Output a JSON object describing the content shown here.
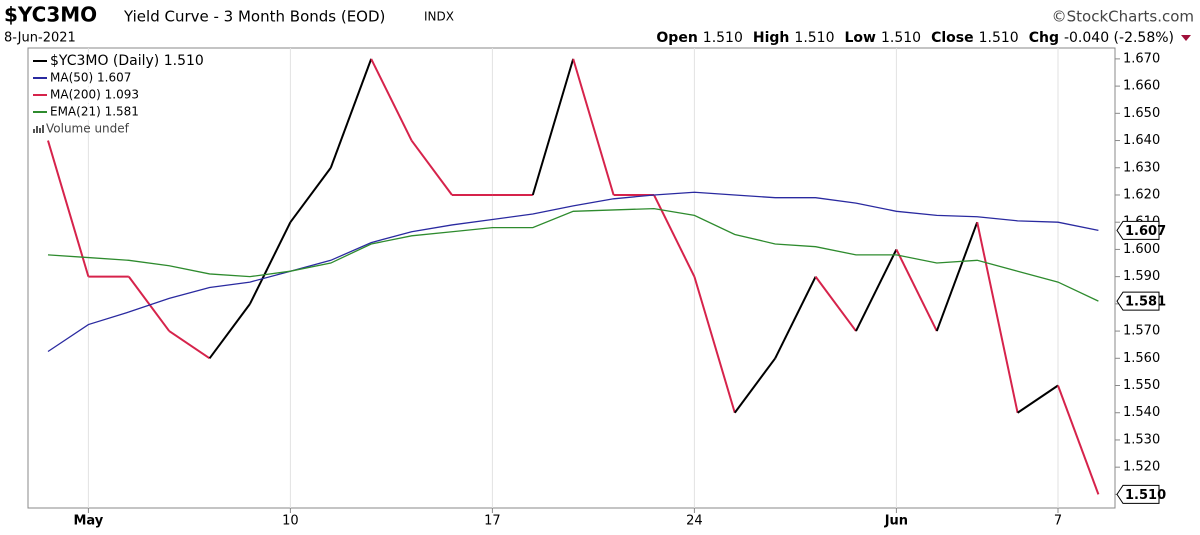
{
  "header": {
    "symbol": "$YC3MO",
    "name": "Yield Curve - 3 Month Bonds (EOD)",
    "exchange": "INDX",
    "source": "©StockCharts.com",
    "date": "8-Jun-2021",
    "quote": [
      {
        "label": "Open",
        "value": "1.510"
      },
      {
        "label": "High",
        "value": "1.510"
      },
      {
        "label": "Low",
        "value": "1.510"
      },
      {
        "label": "Close",
        "value": "1.510"
      },
      {
        "label": "Chg",
        "value": "-0.040 (-2.58%)"
      }
    ]
  },
  "chart_data": {
    "type": "line",
    "categories": [
      null,
      "May",
      null,
      null,
      null,
      null,
      "10",
      null,
      null,
      null,
      null,
      "17",
      null,
      null,
      null,
      null,
      "24",
      null,
      null,
      null,
      null,
      "Jun",
      null,
      null,
      null,
      "7",
      null
    ],
    "bold_categories": [
      "May",
      "Jun"
    ],
    "series": [
      {
        "name": "$YC3MO (Daily) 1.510",
        "up_color": "#000000",
        "down_color": "#d6234b",
        "color": "#000000",
        "last_label": "1.510",
        "values": [
          1.64,
          1.59,
          1.59,
          1.57,
          1.56,
          1.58,
          1.61,
          1.63,
          1.67,
          1.64,
          1.62,
          1.62,
          1.62,
          1.67,
          1.62,
          1.62,
          1.59,
          1.54,
          1.56,
          1.59,
          1.57,
          1.6,
          1.57,
          1.61,
          1.54,
          1.55,
          1.51
        ]
      },
      {
        "name": "MA(50) 1.607",
        "color": "#2a2aa0",
        "last_label": "1.607",
        "values": [
          1.5625,
          1.5724,
          1.577,
          1.582,
          1.586,
          1.588,
          1.592,
          1.596,
          1.6025,
          1.6065,
          1.609,
          1.611,
          1.613,
          1.616,
          1.6186,
          1.62,
          1.621,
          1.62,
          1.619,
          1.619,
          1.617,
          1.614,
          1.6125,
          1.612,
          1.6105,
          1.61,
          1.607
        ]
      },
      {
        "name": "MA(200) 1.093",
        "color": "#d6234b"
      },
      {
        "name": "EMA(21) 1.581",
        "color": "#2e8b2e",
        "last_label": "1.581",
        "values": [
          1.598,
          1.597,
          1.596,
          1.594,
          1.591,
          1.59,
          1.592,
          1.595,
          1.602,
          1.605,
          1.6065,
          1.608,
          1.608,
          1.614,
          1.6145,
          1.615,
          1.6125,
          1.6055,
          1.602,
          1.601,
          1.598,
          1.598,
          1.595,
          1.596,
          1.592,
          1.588,
          1.581
        ]
      }
    ],
    "volume_legend": "Volume undef",
    "ylim": [
      1.505,
      1.674
    ],
    "yticks": [
      {
        "value": 1.51,
        "label": "1.510"
      },
      {
        "value": 1.52,
        "label": "1.520"
      },
      {
        "value": 1.53,
        "label": "1.530"
      },
      {
        "value": 1.54,
        "label": "1.540"
      },
      {
        "value": 1.55,
        "label": "1.550"
      },
      {
        "value": 1.56,
        "label": "1.560"
      },
      {
        "value": 1.57,
        "label": "1.570"
      },
      {
        "value": 1.58,
        "label": "1.580"
      },
      {
        "value": 1.59,
        "label": "1.590"
      },
      {
        "value": 1.6,
        "label": "1.600"
      },
      {
        "value": 1.61,
        "label": "1.610"
      },
      {
        "value": 1.62,
        "label": "1.620"
      },
      {
        "value": 1.63,
        "label": "1.630"
      },
      {
        "value": 1.64,
        "label": "1.640"
      },
      {
        "value": 1.65,
        "label": "1.650"
      },
      {
        "value": 1.66,
        "label": "1.660"
      },
      {
        "value": 1.67,
        "label": "1.670"
      }
    ],
    "grid": true
  }
}
